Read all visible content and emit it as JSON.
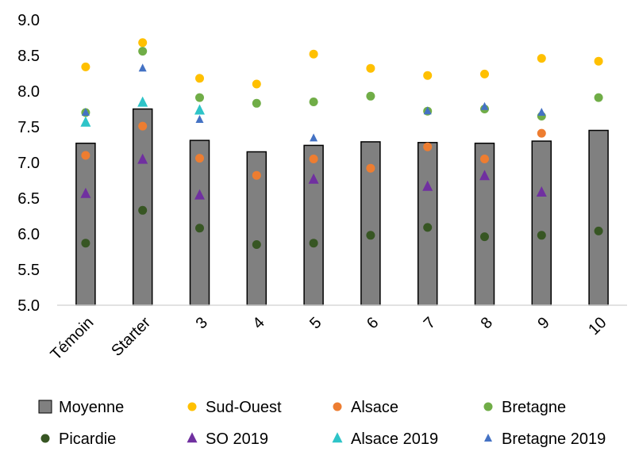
{
  "chart_data": {
    "type": "bar",
    "title": "",
    "xlabel": "",
    "ylabel": "",
    "ylim": [
      5.0,
      9.0
    ],
    "yticks": [
      "5.0",
      "5.5",
      "6.0",
      "6.5",
      "7.0",
      "7.5",
      "8.0",
      "8.5",
      "9.0"
    ],
    "categories": [
      "Témoin",
      "Starter",
      "3",
      "4",
      "5",
      "6",
      "7",
      "8",
      "9",
      "10"
    ],
    "grid": false,
    "legend_position": "bottom",
    "series": [
      {
        "name": "Moyenne",
        "kind": "bar",
        "marker": "square",
        "color": "#808080",
        "values": [
          7.27,
          7.75,
          7.31,
          7.15,
          7.24,
          7.29,
          7.28,
          7.27,
          7.3,
          7.45
        ]
      },
      {
        "name": "Sud-Ouest",
        "kind": "scatter",
        "marker": "circle",
        "color": "#FFC000",
        "values": [
          8.34,
          8.68,
          8.18,
          8.1,
          8.52,
          8.32,
          8.22,
          8.24,
          8.46,
          8.42
        ]
      },
      {
        "name": "Alsace",
        "kind": "scatter",
        "marker": "circle",
        "color": "#ED7D31",
        "values": [
          7.1,
          7.51,
          7.06,
          6.82,
          7.05,
          6.92,
          7.22,
          7.05,
          7.41,
          null
        ]
      },
      {
        "name": "Bretagne",
        "kind": "scatter",
        "marker": "circle",
        "color": "#70AD47",
        "values": [
          7.7,
          8.56,
          7.91,
          7.83,
          7.85,
          7.93,
          7.72,
          7.75,
          7.65,
          7.91
        ]
      },
      {
        "name": "Picardie",
        "kind": "scatter",
        "marker": "circle",
        "color": "#375623",
        "values": [
          5.87,
          6.33,
          6.08,
          5.85,
          5.87,
          5.98,
          6.09,
          5.96,
          5.98,
          6.04
        ]
      },
      {
        "name": "SO 2019",
        "kind": "scatter",
        "marker": "triangle",
        "color": "#7030A0",
        "values": [
          6.56,
          7.04,
          6.54,
          null,
          6.76,
          null,
          6.66,
          6.81,
          6.58,
          null
        ]
      },
      {
        "name": "Alsace 2019",
        "kind": "scatter",
        "marker": "triangle",
        "color": "#2EC4C8",
        "values": [
          7.56,
          7.84,
          7.73,
          null,
          null,
          null,
          null,
          null,
          null,
          null
        ]
      },
      {
        "name": "Bretagne 2019",
        "kind": "scatter",
        "marker": "triangle-small",
        "color": "#4472C4",
        "values": [
          7.7,
          8.32,
          7.6,
          null,
          7.34,
          null,
          7.72,
          7.78,
          7.7,
          null
        ]
      }
    ]
  }
}
